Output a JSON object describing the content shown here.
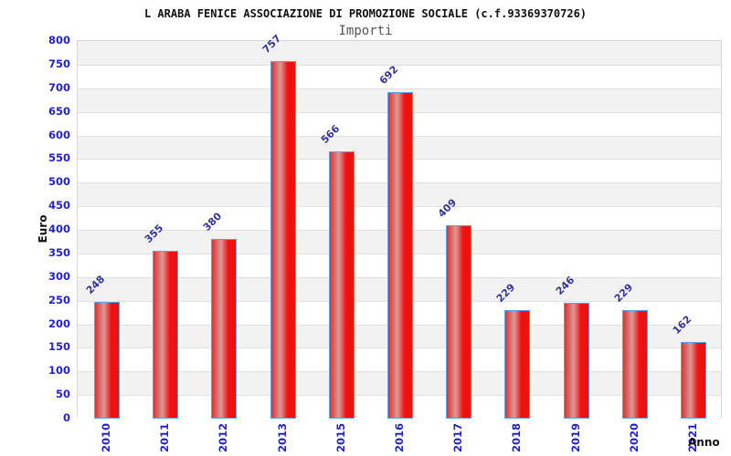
{
  "chart_data": {
    "type": "bar",
    "title": "L ARABA FENICE ASSOCIAZIONE DI PROMOZIONE SOCIALE (c.f.93369370726)",
    "subtitle": "Importi",
    "xlabel": "Anno",
    "ylabel": "Euro",
    "categories": [
      "2010",
      "2011",
      "2012",
      "2013",
      "2015",
      "2016",
      "2017",
      "2018",
      "2019",
      "2020",
      "2021"
    ],
    "values": [
      248,
      355,
      380,
      757,
      566,
      692,
      409,
      229,
      246,
      229,
      162
    ],
    "ylim": [
      0,
      800
    ],
    "ytick_step": 50,
    "grid": "horizontal",
    "legend": "none",
    "bar_labels_rotation_deg": -45,
    "xtick_rotation_deg": -90,
    "colors": {
      "bar_edge": "#d73535",
      "bar_highlight": "#dd9898",
      "bar_main": "#ee1111",
      "bar_border": "#5aa2e8",
      "tick_label": "#2222cc",
      "value_label": "#333399",
      "band_gray": "#f2f2f2",
      "band_white": "#ffffff",
      "gridline": "#e1e1e1",
      "title": "#111111",
      "subtitle": "#555555",
      "axis_title": "#111111"
    }
  }
}
